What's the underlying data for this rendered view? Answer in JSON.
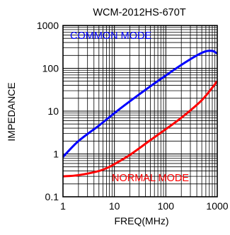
{
  "chart_data": {
    "type": "line",
    "title": "WCM-2012HS-670T",
    "xlabel": "FREQ(MHz)",
    "ylabel": "IMPEDANCE",
    "x_scale": "log",
    "y_scale": "log",
    "xlim": [
      1,
      1000
    ],
    "ylim": [
      0.1,
      1000
    ],
    "x_ticks": [
      "1",
      "10",
      "100",
      "1000"
    ],
    "y_ticks": [
      "1000",
      "100",
      "10",
      "1",
      "0.1"
    ],
    "grid": true,
    "series": [
      {
        "name": "COMMON MODE",
        "color": "#0000ff",
        "x": [
          1,
          2,
          5,
          10,
          20,
          50,
          100,
          200,
          400,
          600,
          800,
          900,
          1000
        ],
        "y": [
          0.85,
          2.0,
          4.6,
          9.0,
          17,
          38,
          68,
          120,
          200,
          250,
          255,
          240,
          220
        ]
      },
      {
        "name": "NORMAL MODE",
        "color": "#ff0000",
        "x": [
          1,
          2,
          5,
          8,
          10,
          20,
          50,
          100,
          200,
          500,
          1000
        ],
        "y": [
          0.3,
          0.32,
          0.4,
          0.5,
          0.58,
          0.95,
          2.1,
          3.8,
          7.0,
          18,
          50
        ]
      }
    ],
    "annotations": [
      {
        "text": "COMMON MODE",
        "color": "#0000ff"
      },
      {
        "text": "NORMAL MODE",
        "color": "#ff0000"
      }
    ]
  }
}
